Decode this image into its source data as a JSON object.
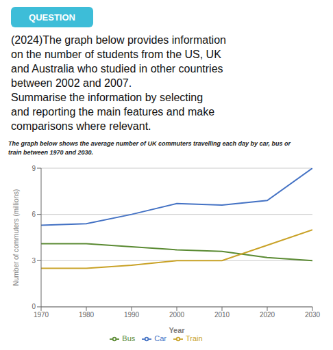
{
  "chart_data": {
    "type": "line",
    "annotations": [
      "QUESTION",
      "(2024)The graph below provides information\non the number of students from the US, UK\nand Australia who studied in other countries\nbetween 2002 and 2007.\nSummarise the information by selecting\nand reporting the main features and make\ncomparisons where relevant."
    ],
    "subtitle": "The graph below shows the average number of UK commuters travelling each day by car, bus or\ntrain between 1970 and 2030.",
    "xlabel": "Year",
    "ylabel": "Number of commuters (millions)",
    "x": [
      1970,
      1980,
      1990,
      2000,
      2010,
      2020,
      2030
    ],
    "series": [
      {
        "name": "Car",
        "color": "#4472C4",
        "values": [
          5.3,
          5.4,
          6.0,
          6.7,
          6.6,
          6.9,
          9.0
        ]
      },
      {
        "name": "Bus",
        "color": "#5A8A32",
        "values": [
          4.1,
          4.1,
          3.9,
          3.7,
          3.6,
          3.2,
          3.0
        ]
      },
      {
        "name": "Train",
        "color": "#C9A227",
        "values": [
          2.5,
          2.5,
          2.7,
          3.0,
          3.0,
          4.0,
          5.0
        ]
      }
    ],
    "xlim": [
      1970,
      2030
    ],
    "xticks": [
      1970,
      1980,
      1990,
      2000,
      2010,
      2020,
      2030
    ],
    "ylim": [
      0,
      9
    ],
    "yticks": [
      0,
      3,
      6,
      9
    ],
    "grid": true,
    "legend": "bottom"
  }
}
